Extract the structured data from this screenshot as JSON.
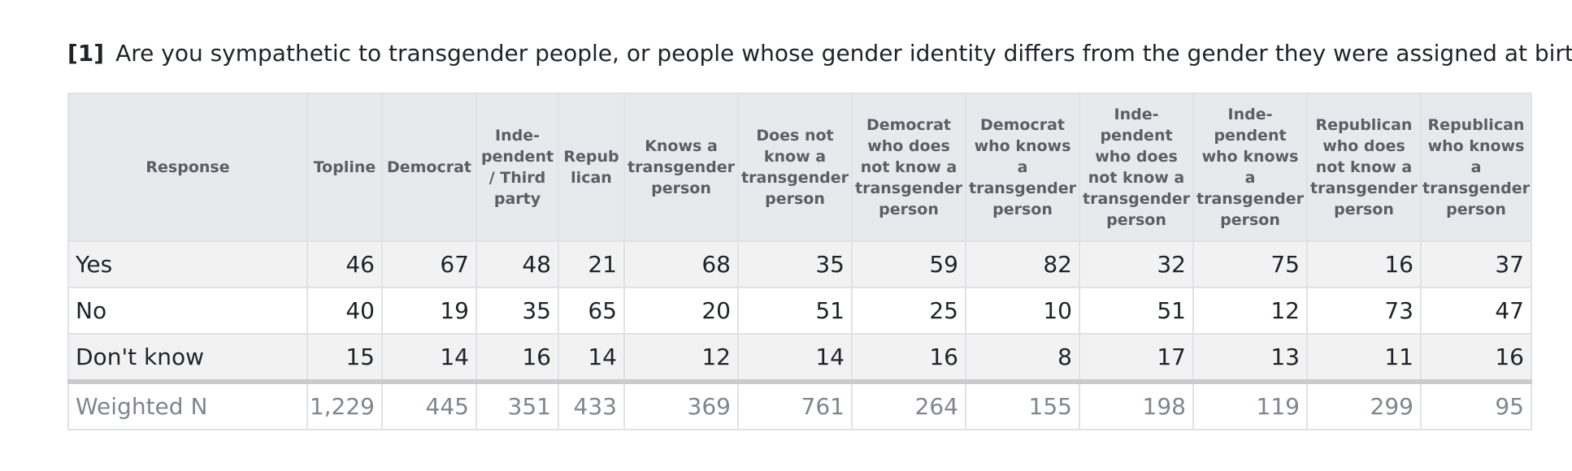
{
  "question": {
    "number": "[1]",
    "text": "Are you sympathetic to transgender people, or people whose gender identity differs from the gender they were assigned at birth?"
  },
  "columns": [
    "Response",
    "Topline",
    "Democrat",
    "Inde-\npendent\n/ Third\nparty",
    "Repub\nlican",
    "Knows a\ntransgender\nperson",
    "Does not\nknow a\ntransgender\nperson",
    "Democrat\nwho does\nnot know a\ntransgender\nperson",
    "Democrat\nwho knows\na\ntransgender\nperson",
    "Inde-\npendent\nwho does\nnot know a\ntransgender\nperson",
    "Inde-\npendent\nwho knows\na\ntransgender\nperson",
    "Republican\nwho does\nnot know a\ntransgender\nperson",
    "Republican\nwho knows\na\ntransgender\nperson"
  ],
  "rows": [
    {
      "label": "Yes",
      "values": [
        "46",
        "67",
        "48",
        "21",
        "68",
        "35",
        "59",
        "82",
        "32",
        "75",
        "16",
        "37"
      ]
    },
    {
      "label": "No",
      "values": [
        "40",
        "19",
        "35",
        "65",
        "20",
        "51",
        "25",
        "10",
        "51",
        "12",
        "73",
        "47"
      ]
    },
    {
      "label": "Don't know",
      "values": [
        "15",
        "14",
        "16",
        "14",
        "12",
        "14",
        "16",
        "8",
        "17",
        "13",
        "11",
        "16"
      ]
    }
  ],
  "weighted_n": {
    "label": "Weighted N",
    "values": [
      "1,229",
      "445",
      "351",
      "433",
      "369",
      "761",
      "264",
      "155",
      "198",
      "119",
      "299",
      "95"
    ]
  }
}
